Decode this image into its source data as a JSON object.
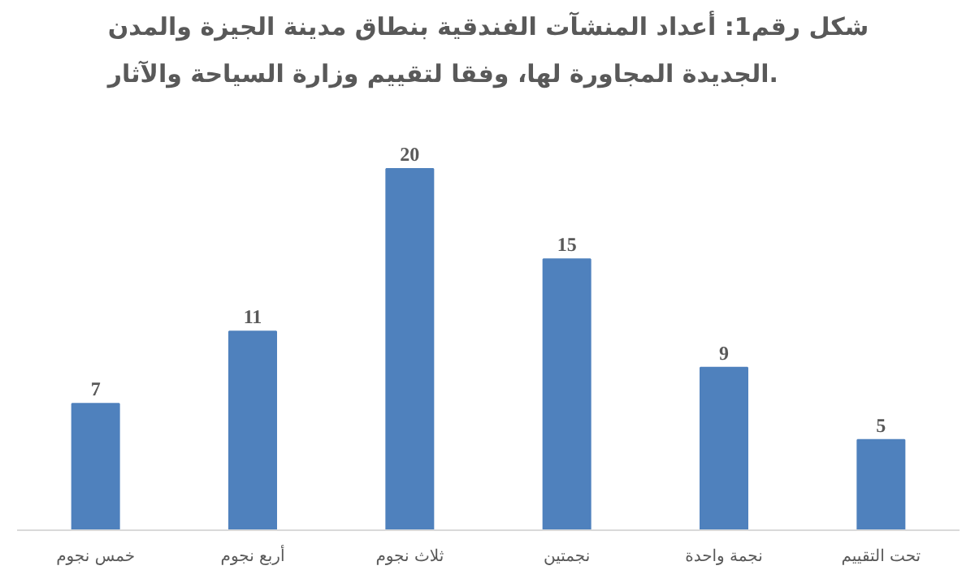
{
  "chart_data": {
    "type": "bar",
    "title": "شكل رقم1: أعداد المنشآت الفندقية بنطاق مدينة الجيزة والمدن\nالجديدة المجاورة لها، وفقا لتقييم وزارة السياحة والآثار.",
    "categories": [
      "خمس نجوم",
      "أربع نجوم",
      "ثلاث نجوم",
      "نجمتين",
      "نجمة واحدة",
      "تحت التقييم"
    ],
    "values": [
      7,
      11,
      20,
      15,
      9,
      5
    ],
    "color": "#4f81bd",
    "data_labels": true,
    "grid": false
  }
}
